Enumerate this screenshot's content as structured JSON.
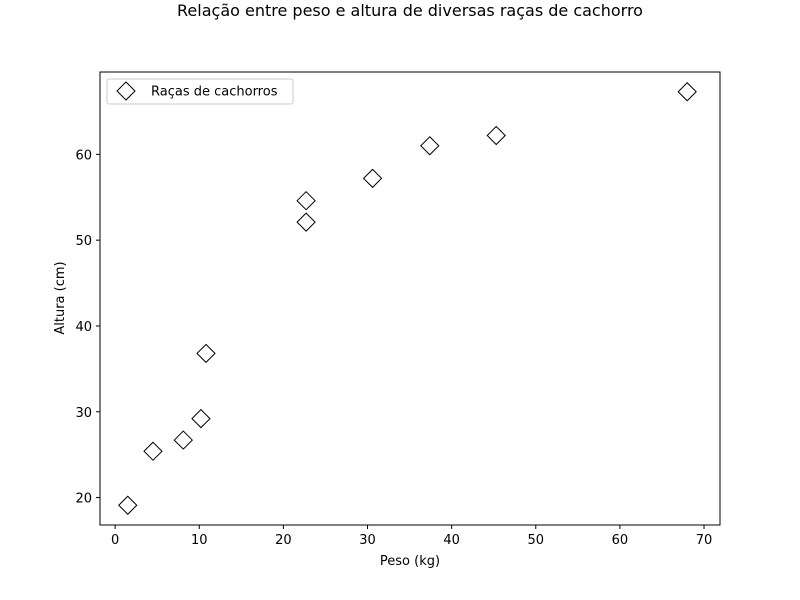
{
  "chart_data": {
    "type": "scatter",
    "title": "Relação entre peso e altura de diversas raças de cachorro",
    "xlabel": "Peso (kg)",
    "ylabel": "Altura (cm)",
    "xlim": [
      -1.8,
      71.9
    ],
    "ylim": [
      16.8,
      69.6
    ],
    "xticks": [
      0,
      10,
      20,
      30,
      40,
      50,
      60,
      70
    ],
    "yticks": [
      20,
      30,
      40,
      50,
      60
    ],
    "grid": false,
    "legend_position": "top-left",
    "marker": "diamond",
    "marker_fill": "#ffffff",
    "marker_edge": "#000000",
    "series": [
      {
        "name": "Raças de cachorros",
        "points": [
          {
            "x": 1.5,
            "y": 19.1
          },
          {
            "x": 4.5,
            "y": 25.4
          },
          {
            "x": 8.1,
            "y": 26.7
          },
          {
            "x": 10.2,
            "y": 29.2
          },
          {
            "x": 10.8,
            "y": 36.8
          },
          {
            "x": 22.7,
            "y": 52.1
          },
          {
            "x": 22.7,
            "y": 54.6
          },
          {
            "x": 30.6,
            "y": 57.2
          },
          {
            "x": 37.4,
            "y": 61.0
          },
          {
            "x": 45.3,
            "y": 62.2
          },
          {
            "x": 68.0,
            "y": 67.3
          }
        ]
      }
    ]
  }
}
